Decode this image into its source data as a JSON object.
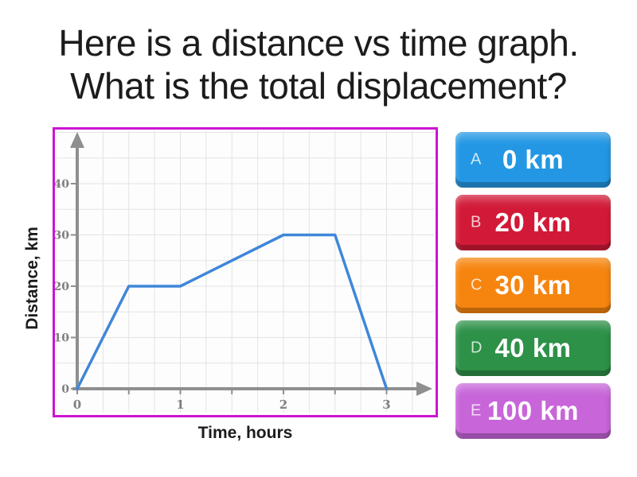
{
  "title": {
    "line1": "Here is a distance vs time graph.",
    "line2": "What is the total displacement?"
  },
  "chart_data": {
    "type": "line",
    "x": [
      0,
      0.5,
      1,
      2,
      2.5,
      3
    ],
    "y": [
      0,
      20,
      20,
      30,
      30,
      0
    ],
    "xlabel": "Time, hours",
    "ylabel": "Distance, km",
    "x_ticks": [
      0,
      1,
      2,
      3
    ],
    "y_ticks": [
      0,
      10,
      20,
      30,
      40
    ],
    "xlim": [
      0,
      3.5
    ],
    "ylim": [
      0,
      50
    ],
    "grid": true,
    "line_color": "#3f87d9",
    "axis_color": "#8f8f8f",
    "grid_color": "#e3e3e3",
    "tick_text_color": "#7e7e7e",
    "border_color": "#cc14d2"
  },
  "answers": [
    {
      "letter": "A",
      "label": "0 km",
      "color": "#2397e4"
    },
    {
      "letter": "B",
      "label": "20 km",
      "color": "#d21a38"
    },
    {
      "letter": "C",
      "label": "30 km",
      "color": "#f6850f"
    },
    {
      "letter": "D",
      "label": "40 km",
      "color": "#2d9148"
    },
    {
      "letter": "E",
      "label": "100 km",
      "color": "#c765d9"
    }
  ]
}
